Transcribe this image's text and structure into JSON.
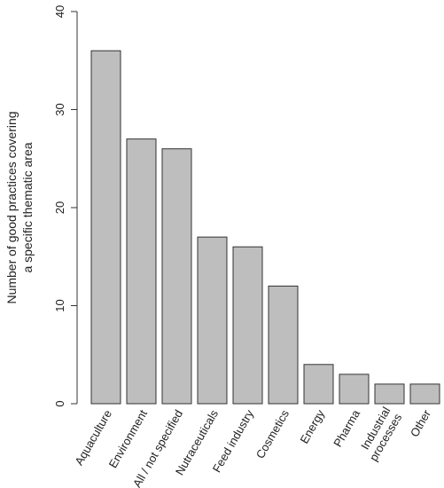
{
  "chart_data": {
    "type": "bar",
    "categories": [
      "Aquaculture",
      "Environment",
      "All / not specified",
      "Nutraceuticals",
      "Feed industry",
      "Cosmetics",
      "Energy",
      "Pharma",
      "Industrial\nprocesses",
      "Other"
    ],
    "values": [
      36,
      27,
      26,
      17,
      16,
      12,
      4,
      3,
      2,
      2
    ],
    "title": "",
    "xlabel": "",
    "ylabel_lines": [
      "Number of good practices covering",
      "a specific thematic area"
    ],
    "ylim": [
      0,
      40
    ],
    "yticks": [
      0,
      10,
      20,
      30,
      40
    ],
    "grid": false,
    "bar_color": "#bebebe",
    "bar_edge_color": "#333333"
  }
}
